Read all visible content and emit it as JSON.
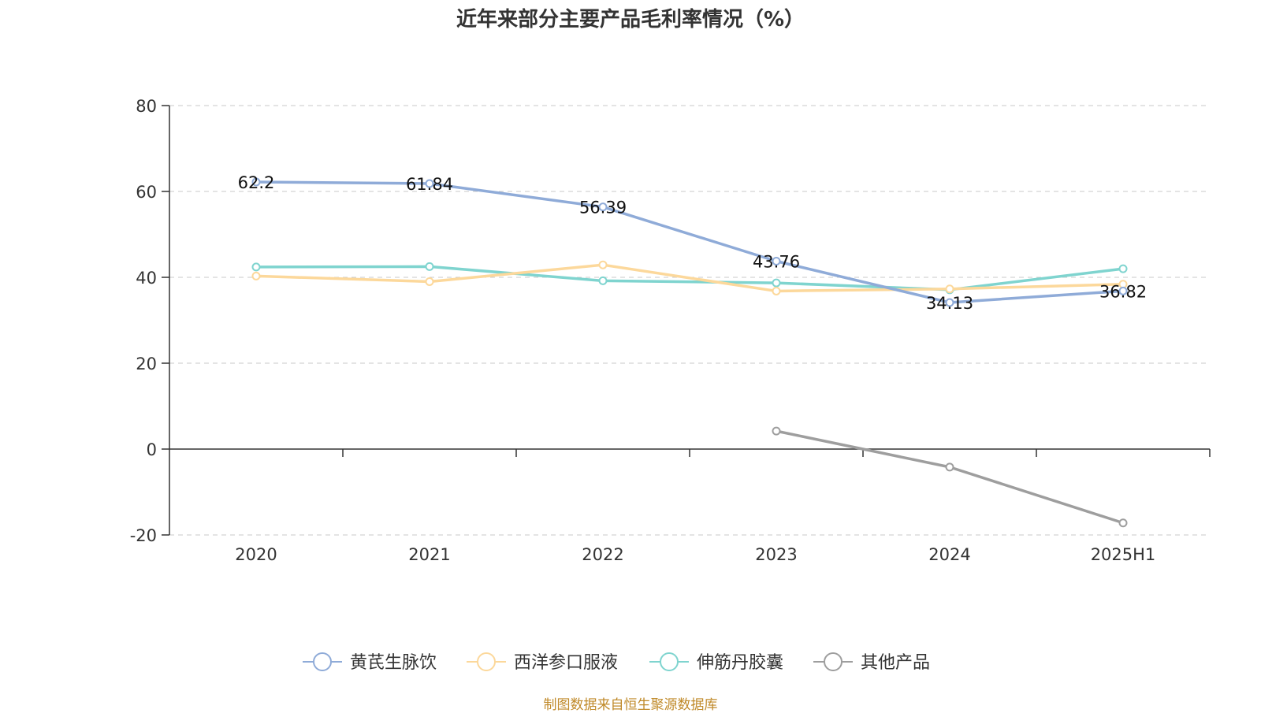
{
  "title": "近年来部分主要产品毛利率情况（%）",
  "source": "制图数据来自恒生聚源数据库",
  "chart_data": {
    "type": "line",
    "categories": [
      "2020",
      "2021",
      "2022",
      "2023",
      "2024",
      "2025H1"
    ],
    "ylim": [
      -20,
      80
    ],
    "yticks": [
      80,
      60,
      40,
      20,
      0,
      -20
    ],
    "grid": true,
    "legend_position": "bottom",
    "series": [
      {
        "name": "黄芪生脉饮",
        "color": "#8fabd8",
        "values": [
          62.2,
          61.84,
          56.39,
          43.76,
          34.13,
          36.82
        ],
        "labels": [
          "62.2",
          "61.84",
          "56.39",
          "43.76",
          "34.13",
          "36.82"
        ]
      },
      {
        "name": "西洋参口服液",
        "color": "#fcd89b",
        "values": [
          40.3,
          39.0,
          42.9,
          36.8,
          37.3,
          38.4
        ]
      },
      {
        "name": "伸筋丹胶囊",
        "color": "#7fd4cf",
        "values": [
          42.4,
          42.5,
          39.2,
          38.7,
          37.1,
          42.0
        ]
      },
      {
        "name": "其他产品",
        "color": "#9e9e9e",
        "values": [
          null,
          null,
          null,
          4.2,
          -4.2,
          -17.2
        ]
      }
    ]
  }
}
